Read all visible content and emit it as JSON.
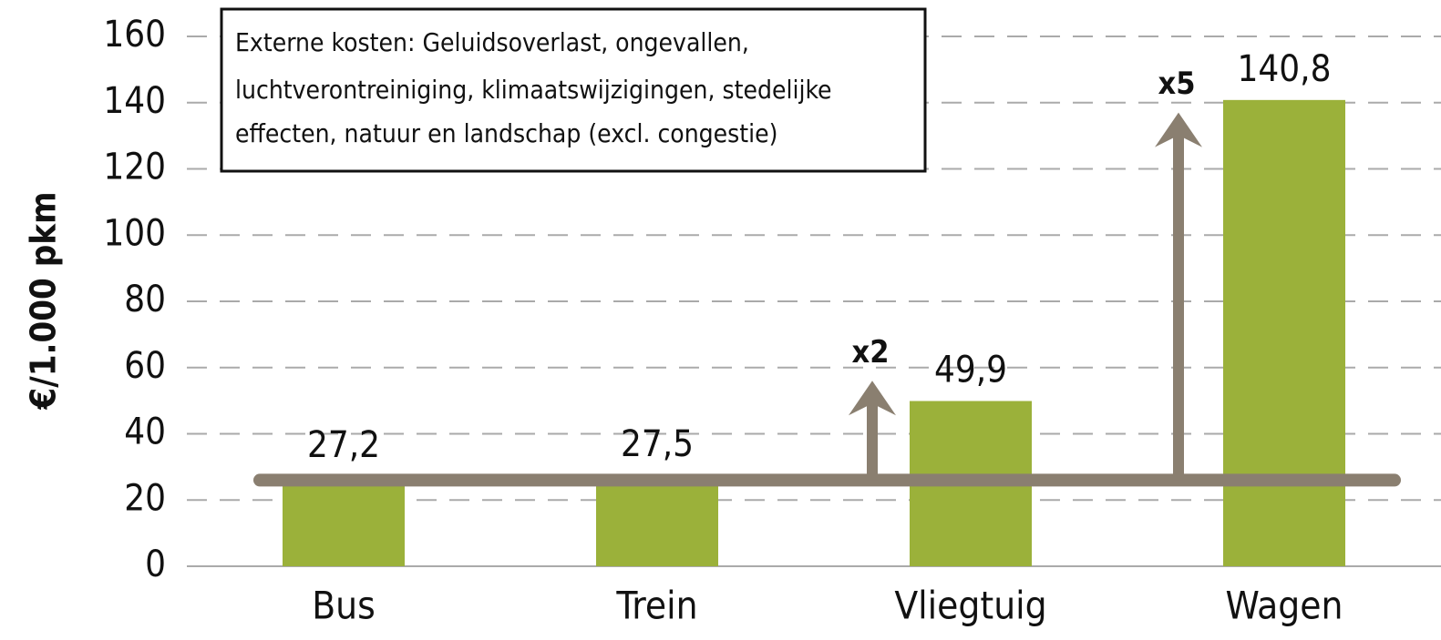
{
  "chart_data": {
    "type": "bar",
    "ylabel": "€/1.000 pkm",
    "categories": [
      "Bus",
      "Trein",
      "Vliegtuig",
      "Wagen"
    ],
    "values": [
      27.2,
      27.5,
      49.9,
      140.8
    ],
    "value_labels": [
      "27,2",
      "27,5",
      "49,9",
      "140,8"
    ],
    "color": "#9bb13a",
    "ylim": [
      0,
      160
    ],
    "yticks": [
      0,
      20,
      40,
      60,
      80,
      100,
      120,
      140,
      160
    ],
    "grid": true,
    "annotation": [
      "Externe kosten: Geluidsoverlast, ongevallen,",
      "luchtverontreiniging, klimaatswijzigingen, stedelijke",
      "effecten, natuur en landschap (excl. congestie)"
    ],
    "reference_line": 26,
    "arrows": [
      {
        "label": "x2",
        "from": 26,
        "to": 56
      },
      {
        "label": "x5",
        "from": 26,
        "to": 137
      }
    ]
  }
}
